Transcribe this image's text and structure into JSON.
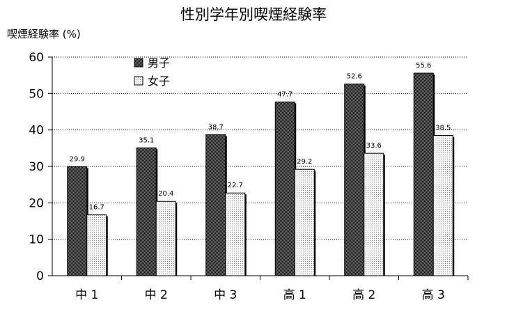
{
  "chart_data": {
    "type": "bar",
    "title": "性別学年別喫煙経験率",
    "ylabel": "喫煙経験率 (%)",
    "xlabel": "",
    "ylim": [
      0,
      60
    ],
    "yticks": [
      0,
      10,
      20,
      30,
      40,
      50,
      60
    ],
    "grid": true,
    "legend_position": "top-left",
    "categories": [
      "中 1",
      "中 2",
      "中 3",
      "高 1",
      "高 2",
      "高 3"
    ],
    "series": [
      {
        "name": "男子",
        "values": [
          29.9,
          35.1,
          38.7,
          47.7,
          52.6,
          55.6
        ],
        "color": "#555555"
      },
      {
        "name": "女子",
        "values": [
          16.7,
          20.4,
          22.7,
          29.2,
          33.6,
          38.5
        ],
        "color": "#e8e8e8"
      }
    ]
  }
}
